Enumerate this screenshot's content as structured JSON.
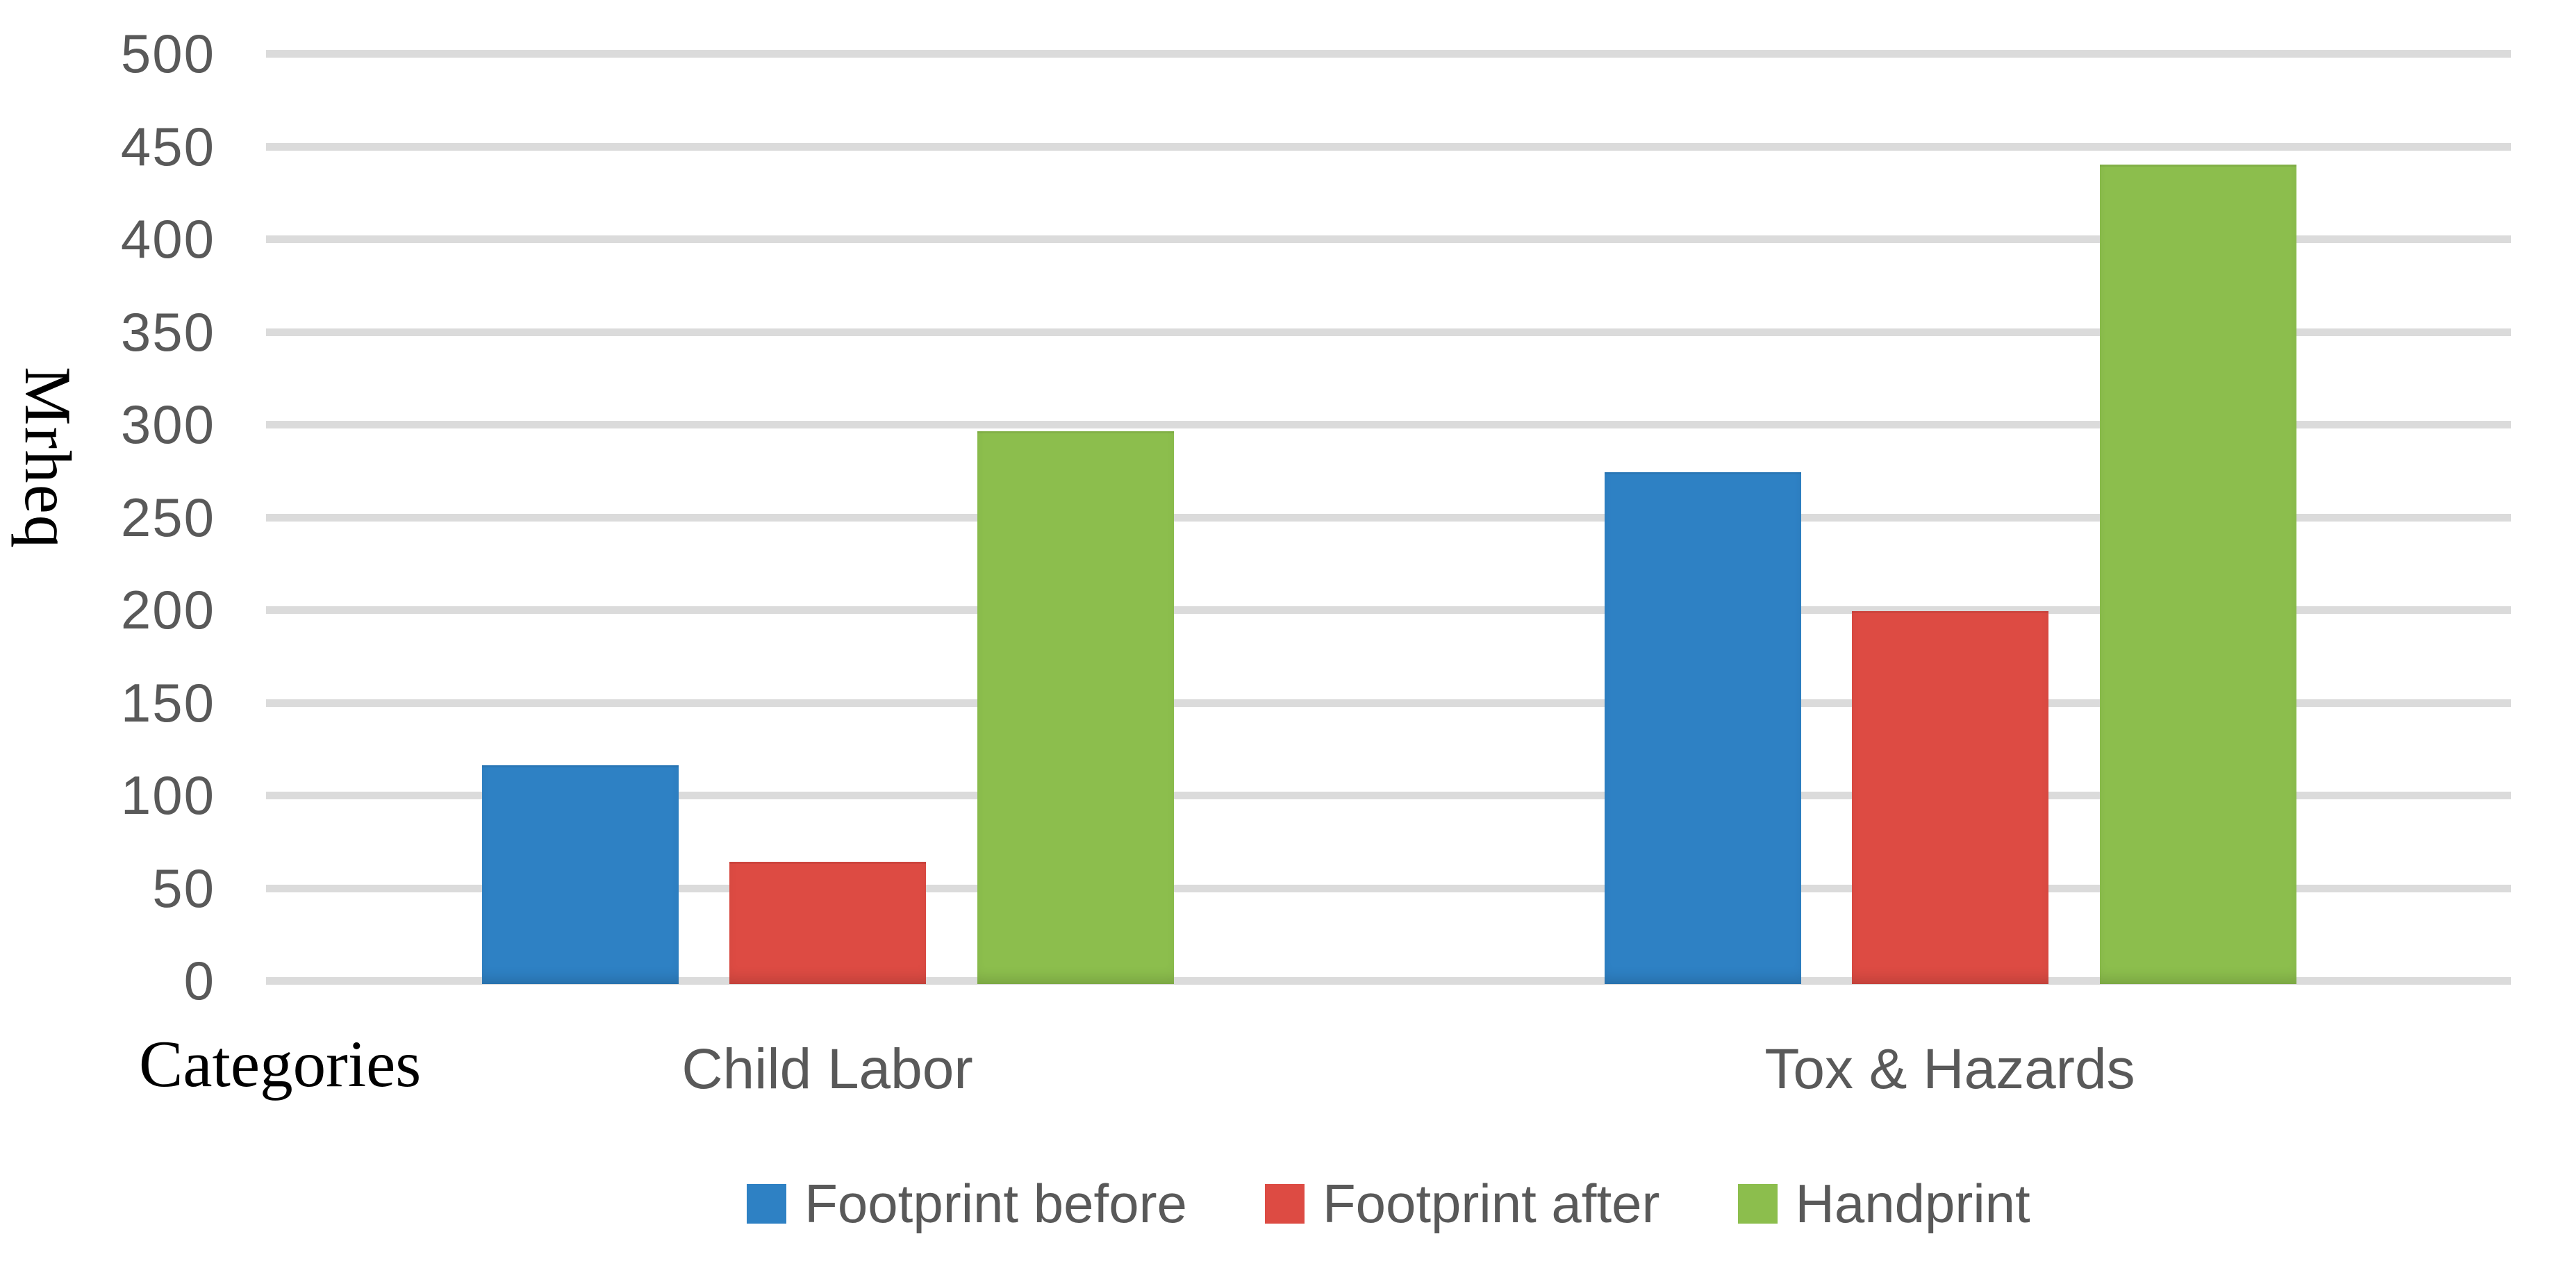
{
  "chart_data": {
    "type": "bar",
    "title": "",
    "categories": [
      "Child Labor",
      "Tox & Hazards"
    ],
    "series": [
      {
        "name": "Footprint before",
        "color": "#2e81c4",
        "values": [
          118,
          276
        ]
      },
      {
        "name": "Footprint after",
        "color": "#dd4b43",
        "values": [
          66,
          201
        ]
      },
      {
        "name": "Handprint",
        "color": "#8cbe4d",
        "values": [
          298,
          442
        ]
      }
    ],
    "xlabel": "Categories",
    "ylabel": "Mrheq",
    "ylim": [
      0,
      500
    ],
    "ytick_step": 50,
    "y_ticks": [
      500,
      450,
      400,
      350,
      300,
      250,
      200,
      150,
      100,
      50,
      0
    ],
    "grid": true,
    "legend_position": "bottom",
    "colors": {
      "gridline": "#dbdbdb",
      "tick_text": "#595959",
      "axis_title_text": "#000000",
      "background": "#ffffff"
    }
  }
}
